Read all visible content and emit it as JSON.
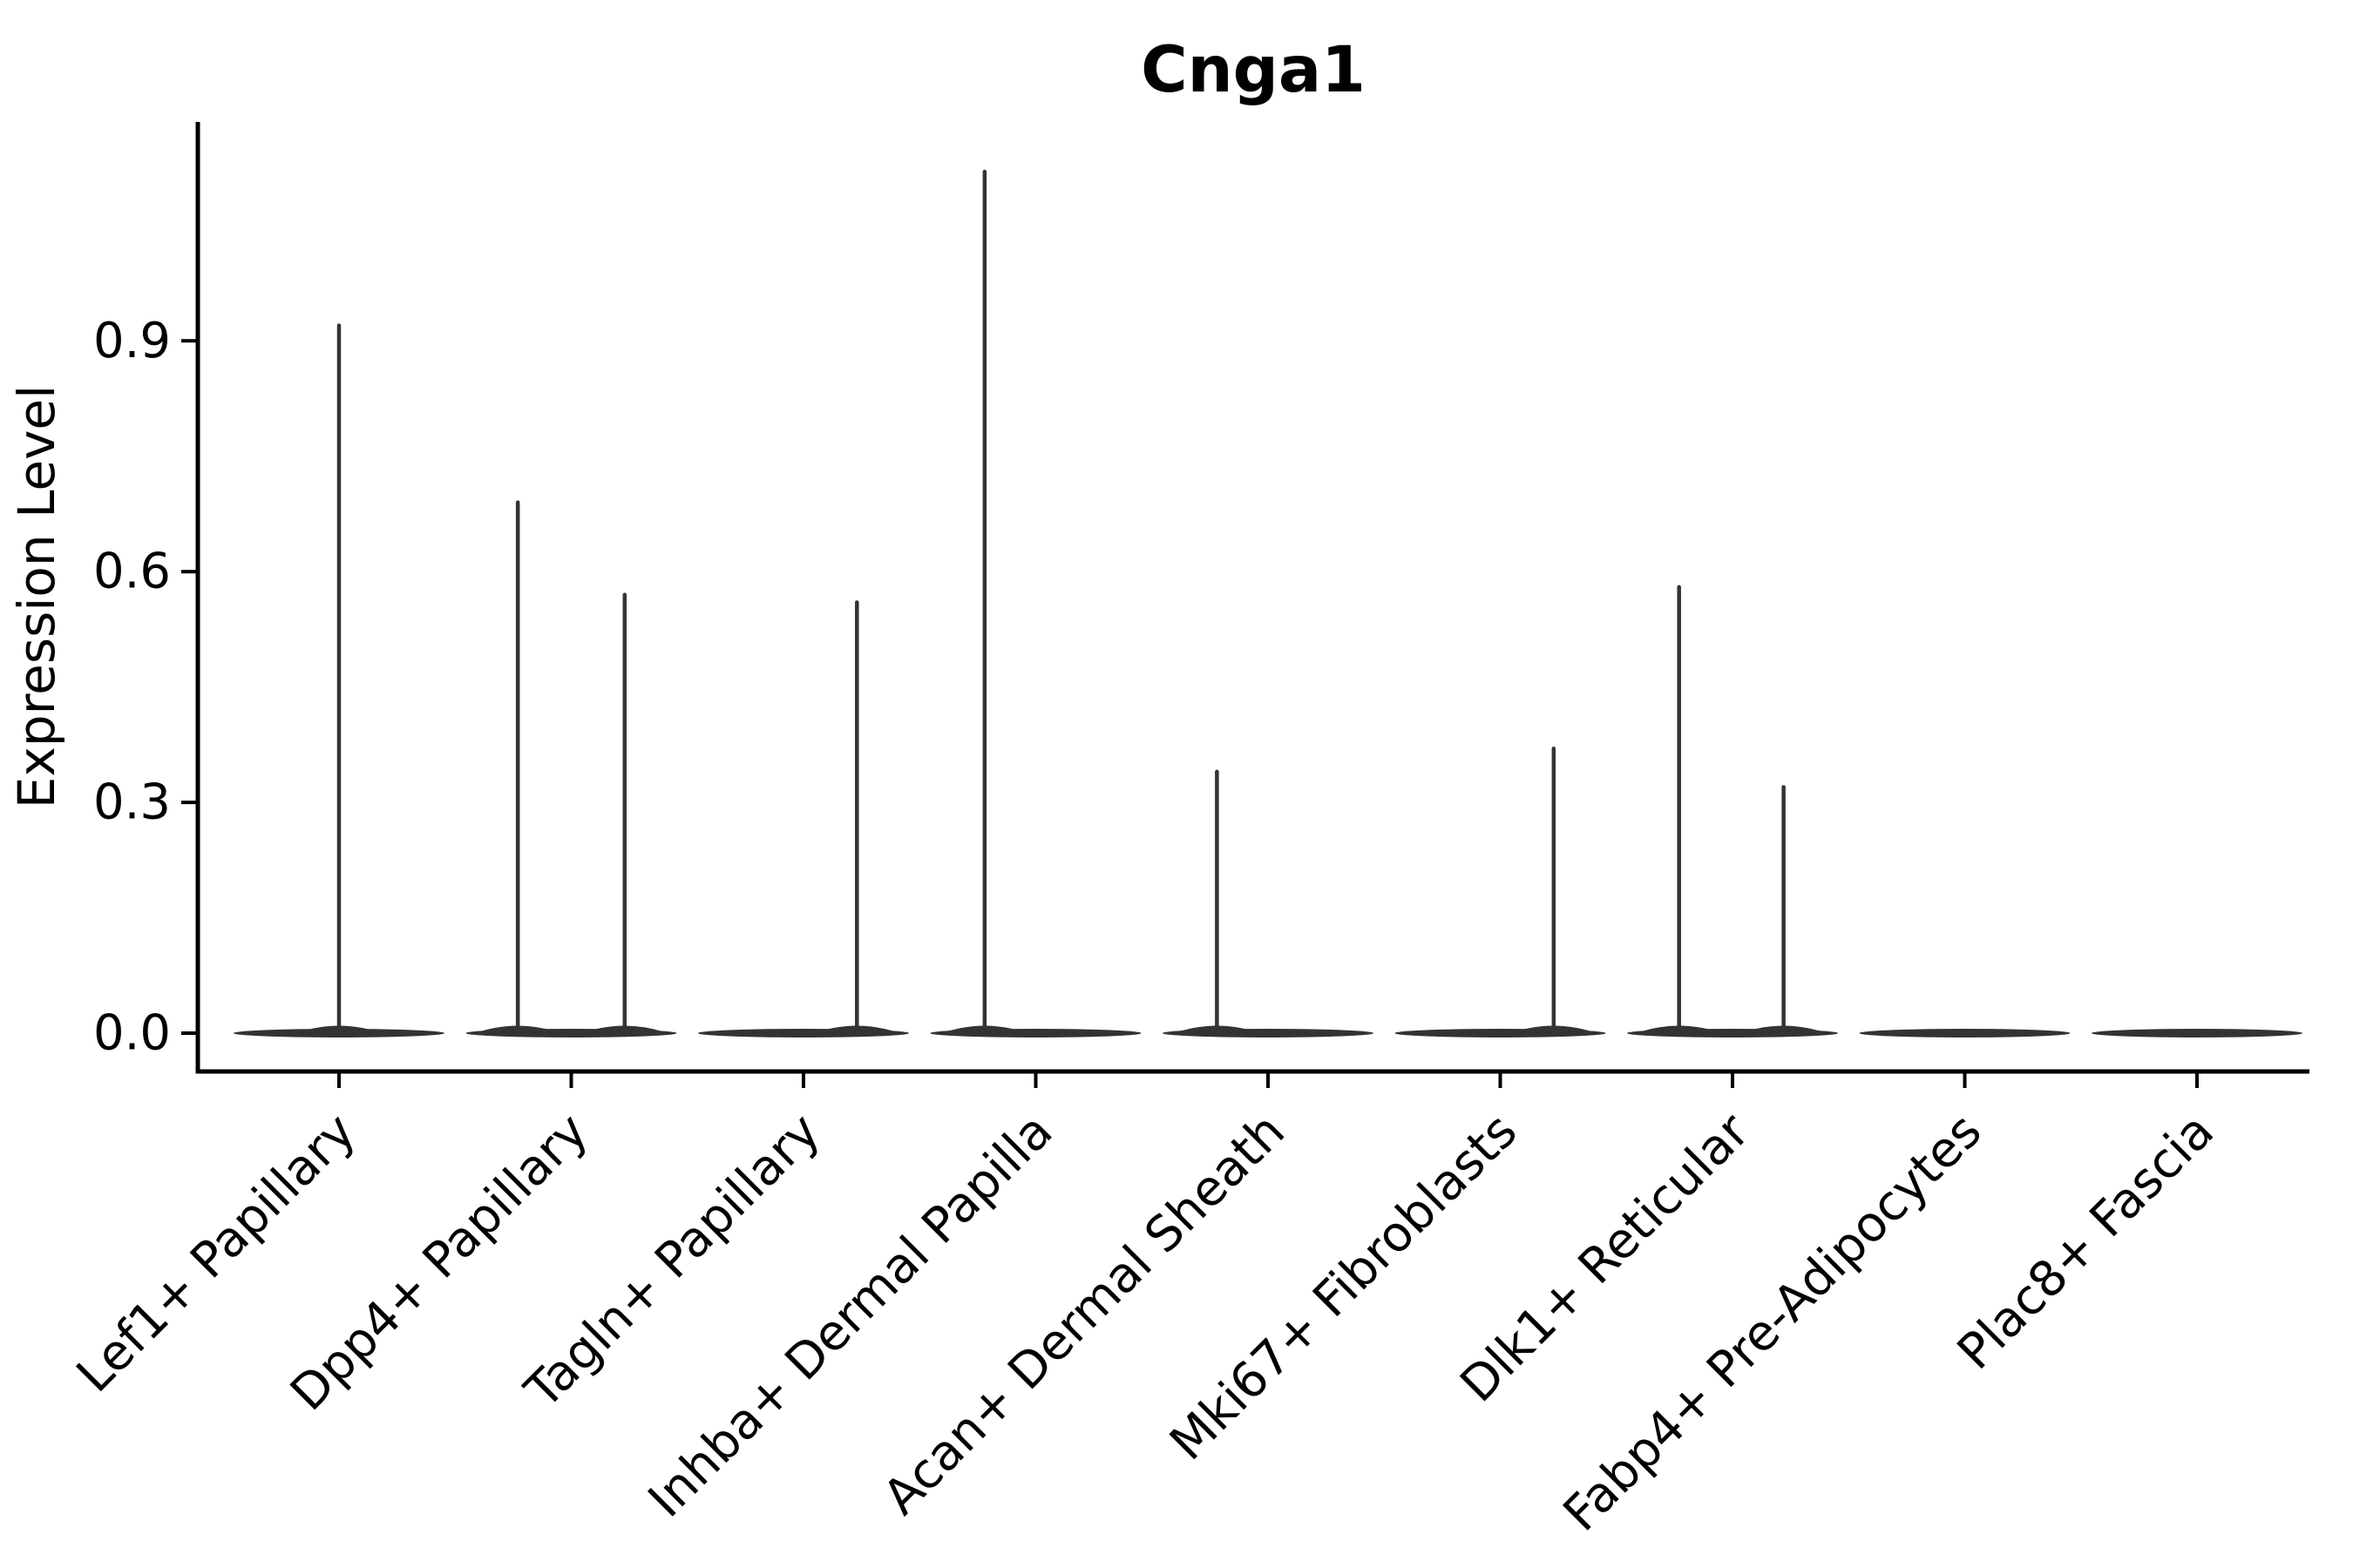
{
  "chart_data": {
    "type": "violin",
    "title": "Cnga1",
    "ylabel": "Expression Level",
    "xlabel": "",
    "legend_position": "none",
    "grid": false,
    "x_tick_rotation_deg": 45,
    "y_axis": {
      "range": [
        -0.05,
        1.19
      ],
      "ticks": [
        {
          "value": 0.0,
          "label": "0.0"
        },
        {
          "value": 0.3,
          "label": "0.3"
        },
        {
          "value": 0.6,
          "label": "0.6"
        },
        {
          "value": 0.9,
          "label": "0.9"
        }
      ]
    },
    "categories": [
      "Lef1+ Papillary",
      "Dpp4+ Papillary",
      "Tagln+ Papillary",
      "Inhba+ Dermal Papilla",
      "Acan+ Dermal Sheath",
      "Mki67+ Fibroblasts",
      "Dlk1+ Reticular",
      "Fabp4+ Pre-Adipocytes",
      "Plac8+ Fascia"
    ],
    "violins": [
      {
        "category": "Lef1+ Papillary",
        "zero_collapsed_base": true,
        "spikes": [
          {
            "offset_frac": 0.0,
            "max": 0.92
          }
        ]
      },
      {
        "category": "Dpp4+ Papillary",
        "zero_collapsed_base": true,
        "spikes": [
          {
            "offset_frac": -0.23,
            "max": 0.69
          },
          {
            "offset_frac": 0.23,
            "max": 0.57
          }
        ]
      },
      {
        "category": "Tagln+ Papillary",
        "zero_collapsed_base": true,
        "spikes": [
          {
            "offset_frac": 0.23,
            "max": 0.56
          }
        ]
      },
      {
        "category": "Inhba+ Dermal Papilla",
        "zero_collapsed_base": true,
        "spikes": [
          {
            "offset_frac": -0.22,
            "max": 1.12
          }
        ]
      },
      {
        "category": "Acan+ Dermal Sheath",
        "zero_collapsed_base": true,
        "spikes": [
          {
            "offset_frac": -0.22,
            "max": 0.34
          }
        ]
      },
      {
        "category": "Mki67+ Fibroblasts",
        "zero_collapsed_base": true,
        "spikes": [
          {
            "offset_frac": 0.23,
            "max": 0.37
          }
        ]
      },
      {
        "category": "Dlk1+ Reticular",
        "zero_collapsed_base": true,
        "spikes": [
          {
            "offset_frac": -0.23,
            "max": 0.58
          },
          {
            "offset_frac": 0.22,
            "max": 0.32
          }
        ]
      },
      {
        "category": "Fabp4+ Pre-Adipocytes",
        "zero_collapsed_base": true,
        "spikes": []
      },
      {
        "category": "Plac8+ Fascia",
        "zero_collapsed_base": true,
        "spikes": []
      }
    ],
    "style": {
      "violin_color": "#333333",
      "axis_color": "#000000",
      "text_color": "#000000",
      "background": "#ffffff"
    }
  }
}
